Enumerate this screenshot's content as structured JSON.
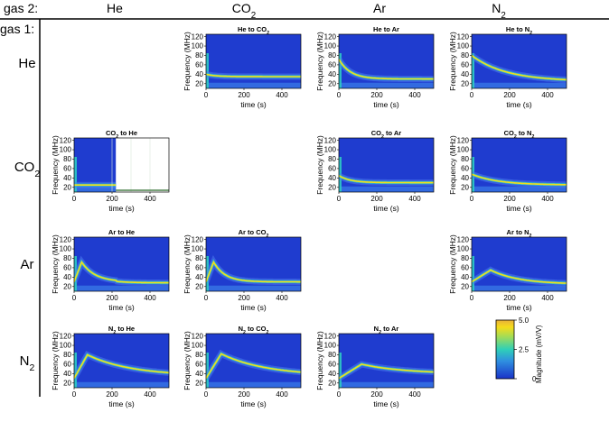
{
  "figure": {
    "gas2_label": "gas 2:",
    "gas1_label": "gas 1:",
    "columns": [
      {
        "base": "He",
        "sub": ""
      },
      {
        "base": "CO",
        "sub": "2"
      },
      {
        "base": "Ar",
        "sub": ""
      },
      {
        "base": "N",
        "sub": "2"
      }
    ],
    "rows": [
      {
        "base": "He",
        "sub": ""
      },
      {
        "base": "CO",
        "sub": "2"
      },
      {
        "base": "Ar",
        "sub": ""
      },
      {
        "base": "N",
        "sub": "2"
      }
    ],
    "panels": [
      {
        "from": "He",
        "to": "CO2",
        "t1": "He to CO",
        "t2": "2",
        "t3": "",
        "start": 40,
        "peak": 40,
        "peak_time": 0,
        "end": 35,
        "tau": 50,
        "change_time": 0,
        "data_until": 500
      },
      {
        "from": "He",
        "to": "Ar",
        "t1": "He to Ar",
        "t2": "",
        "t3": "",
        "start": 72,
        "peak": 72,
        "peak_time": 0,
        "end": 30,
        "tau": 60,
        "change_time": 0,
        "data_until": 500
      },
      {
        "from": "He",
        "to": "N2",
        "t1": "He to N",
        "t2": "2",
        "t3": "",
        "start": 80,
        "peak": 80,
        "peak_time": 0,
        "end": 25,
        "tau": 180,
        "change_time": 0,
        "data_until": 500
      },
      {
        "from": "CO2",
        "to": "He",
        "t1": "CO",
        "t2": "2",
        "t3": " to He",
        "start": 25,
        "peak": 25,
        "peak_time": 0,
        "end": 25,
        "tau": 50,
        "change_time": 0,
        "data_until": 220
      },
      {
        "from": "CO2",
        "to": "Ar",
        "t1": "CO",
        "t2": "2",
        "t3": " to Ar",
        "start": 45,
        "peak": 45,
        "peak_time": 0,
        "end": 30,
        "tau": 60,
        "change_time": 0,
        "data_until": 500
      },
      {
        "from": "CO2",
        "to": "N2",
        "t1": "CO",
        "t2": "2",
        "t3": " to N",
        "t4": "2",
        "start": 48,
        "peak": 48,
        "peak_time": 0,
        "end": 25,
        "tau": 140,
        "change_time": 0,
        "data_until": 500
      },
      {
        "from": "Ar",
        "to": "He",
        "t1": "Ar to He",
        "t2": "",
        "t3": "",
        "start": 30,
        "peak": 72,
        "peak_time": 40,
        "end": 30,
        "tau": 70,
        "change_time": 220,
        "data_until": 500
      },
      {
        "from": "Ar",
        "to": "CO2",
        "t1": "Ar to CO",
        "t2": "2",
        "t3": "",
        "start": 30,
        "peak": 72,
        "peak_time": 40,
        "end": 30,
        "tau": 60,
        "change_time": 0,
        "data_until": 500
      },
      {
        "from": "Ar",
        "to": "N2",
        "t1": "Ar to N",
        "t2": "2",
        "t3": "",
        "start": 30,
        "peak": 55,
        "peak_time": 100,
        "end": 25,
        "tau": 150,
        "change_time": 0,
        "data_until": 500
      },
      {
        "from": "N2",
        "to": "He",
        "t1": "N",
        "t2": "2",
        "t3": " to He",
        "start": 30,
        "peak": 80,
        "peak_time": 70,
        "end": 35,
        "tau": 230,
        "change_time": 0,
        "data_until": 500
      },
      {
        "from": "N2",
        "to": "CO2",
        "t1": "N",
        "t2": "2",
        "t3": " to CO",
        "t4": "2",
        "start": 30,
        "peak": 82,
        "peak_time": 80,
        "end": 35,
        "tau": 240,
        "change_time": 0,
        "data_until": 500
      },
      {
        "from": "N2",
        "to": "Ar",
        "t1": "N",
        "t2": "2",
        "t3": " to Ar",
        "start": 30,
        "peak": 60,
        "peak_time": 120,
        "end": 40,
        "tau": 220,
        "change_time": 0,
        "data_until": 500
      }
    ],
    "y_axis": {
      "label": "Frequency (MHz)",
      "ticks": [
        "120",
        "100",
        "80",
        "60",
        "40",
        "20"
      ],
      "range": [
        10,
        125
      ]
    },
    "x_axis": {
      "label": "time (s)",
      "ticks": [
        "0",
        "200",
        "400"
      ],
      "range": [
        0,
        500
      ]
    },
    "colorbar": {
      "label": "Magnitude (mV/V)",
      "ticks": [
        "5.0",
        "2.5",
        "0"
      ],
      "range": [
        0,
        5
      ]
    },
    "colors": {
      "background": "#1f3ccf",
      "low": "#3a55e8",
      "mid": "#2ec9c4",
      "high": "#f5dc1a",
      "max": "#e8b03a"
    }
  }
}
